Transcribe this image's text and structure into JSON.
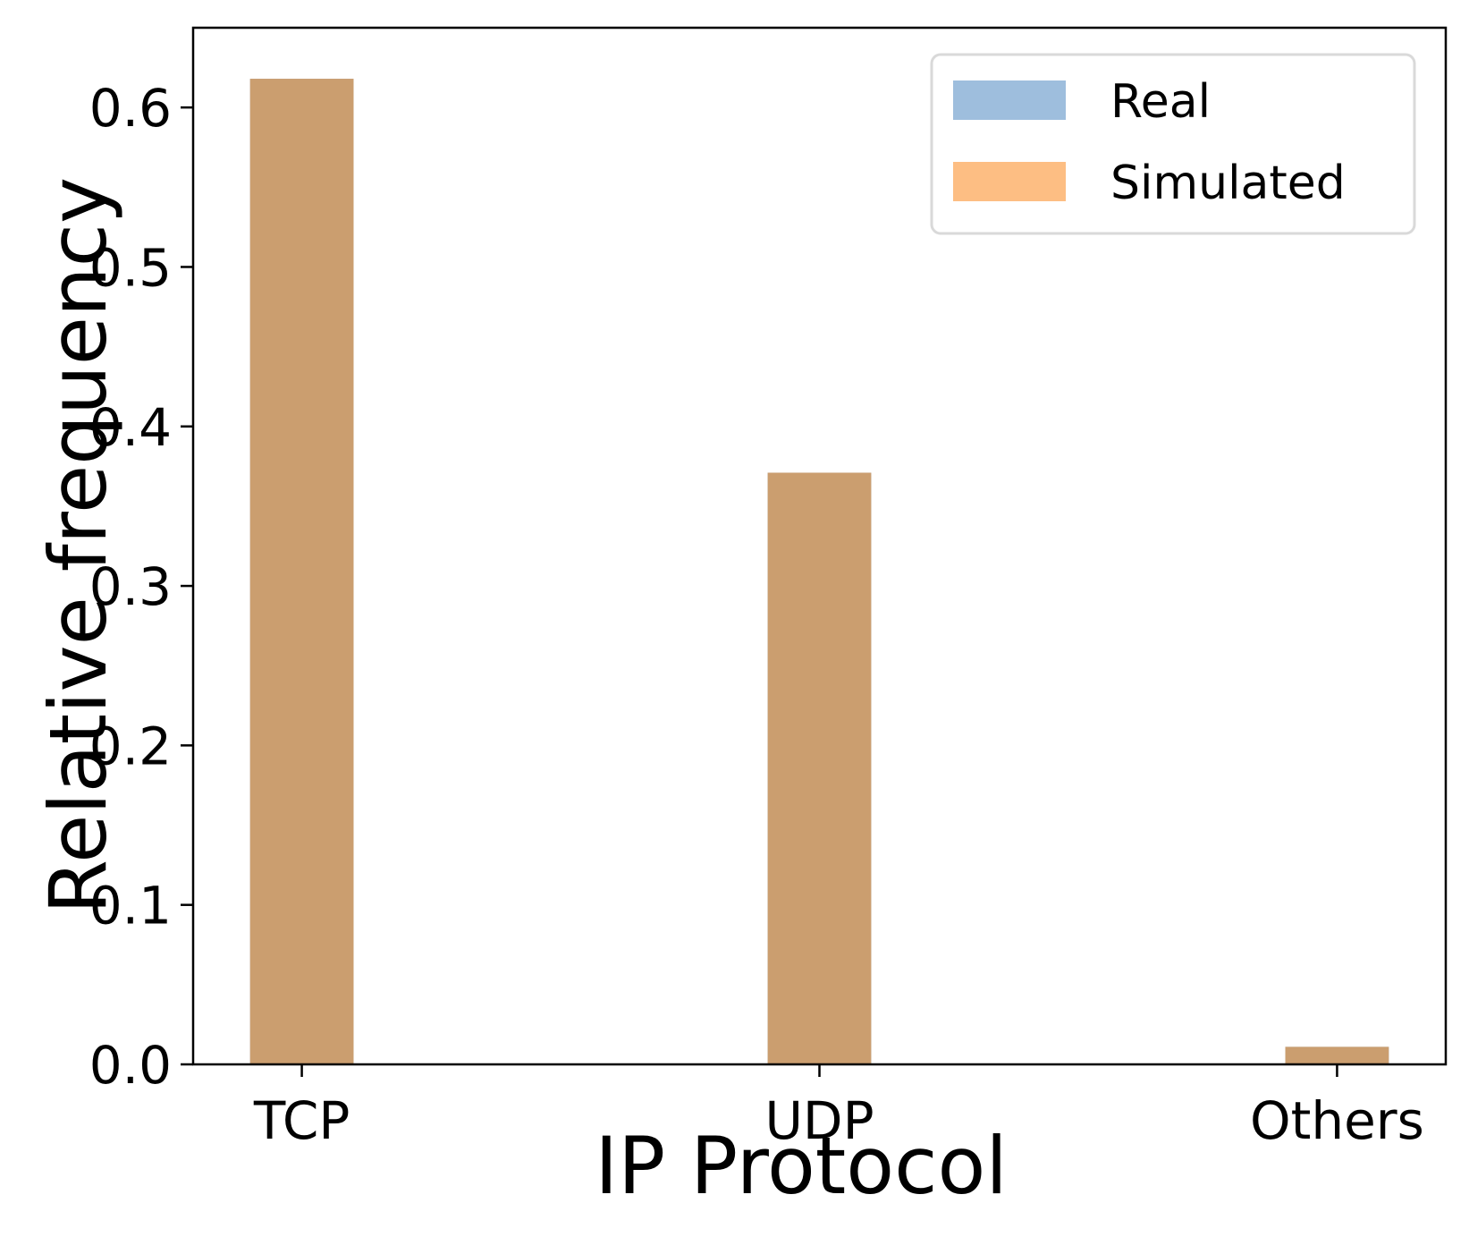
{
  "chart_data": {
    "type": "bar",
    "categories": [
      "TCP",
      "UDP",
      "Others"
    ],
    "series": [
      {
        "name": "Real",
        "values": [
          0.618,
          0.371,
          0.011
        ],
        "color": "#9ebedd"
      },
      {
        "name": "Simulated",
        "values": [
          0.618,
          0.371,
          0.011
        ],
        "color": "#fdbe83"
      }
    ],
    "overlap_color": "#cb9e6f",
    "xlabel": "IP Protocol",
    "ylabel": "Relative frequency",
    "ylim": [
      0,
      0.65
    ],
    "yticks": [
      "0.0",
      "0.1",
      "0.2",
      "0.3",
      "0.4",
      "0.5",
      "0.6"
    ],
    "legend": "top-right",
    "grid": false
  }
}
